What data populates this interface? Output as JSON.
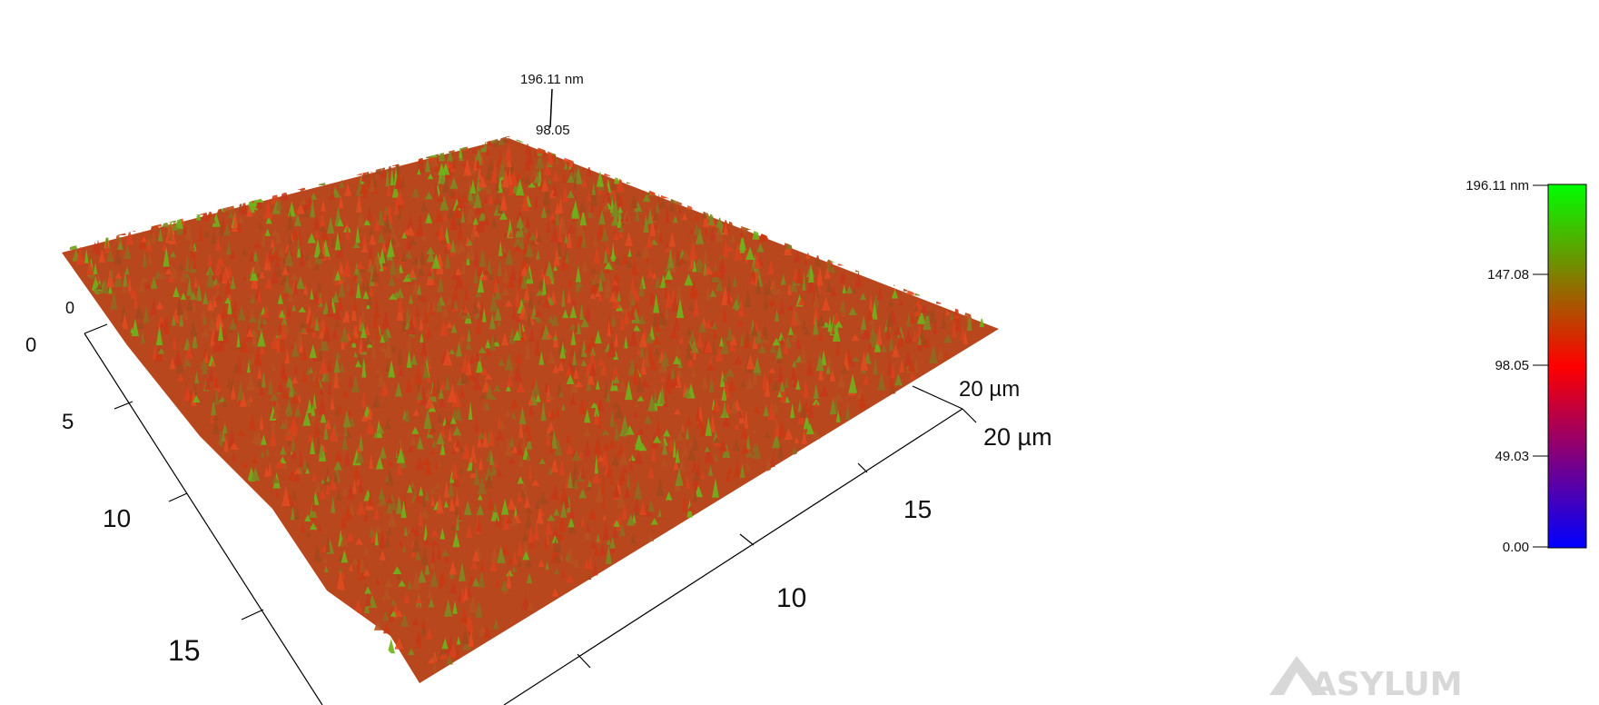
{
  "chart_data": {
    "type": "surface",
    "z_max_label": "196.11 nm",
    "z_mid_label": "98.05",
    "axes": {
      "y_axis": {
        "ticks": [
          "0",
          "5",
          "10",
          "15"
        ],
        "end_label": "20 µm"
      },
      "x_axis": {
        "ticks": [
          "10",
          "15"
        ],
        "end_label": "20 µm",
        "start_tick": "0"
      }
    },
    "colorbar": {
      "ticks": [
        "196.11 nm",
        "147.08",
        "98.05",
        "49.03",
        "0.00"
      ],
      "values": [
        196.11,
        147.08,
        98.05,
        49.03,
        0.0
      ],
      "unit": "nm",
      "range": [
        0,
        196.11
      ],
      "colors": [
        "#00ff00",
        "#ff0000",
        "#0000ff"
      ]
    }
  },
  "logo": {
    "text": "ASYLUM"
  },
  "colors": {
    "surface_low": "#c83a12",
    "surface_high": "#6fb21d",
    "frame": "#000000"
  }
}
